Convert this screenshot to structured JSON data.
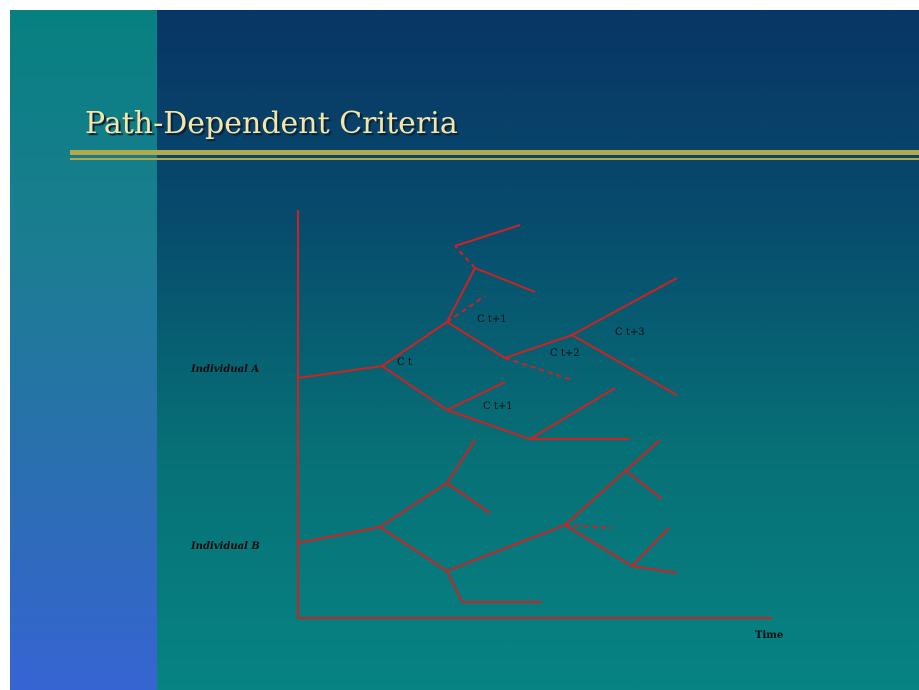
{
  "slide": {
    "title": "Path-Dependent Criteria",
    "colors": {
      "title": "#f4e7a6",
      "rule": "#b3a84a",
      "branch": "#cc2222",
      "label": "#0b0b0b"
    }
  },
  "diagram": {
    "individual_a_label": "Individual A",
    "individual_b_label": "Individual B",
    "time_label": "Time",
    "criteria": {
      "ct": "C t",
      "ct1_upper": "C t+1",
      "ct1_lower": "C t+1",
      "ct2": "C t+2",
      "ct3": "C t+3"
    }
  }
}
